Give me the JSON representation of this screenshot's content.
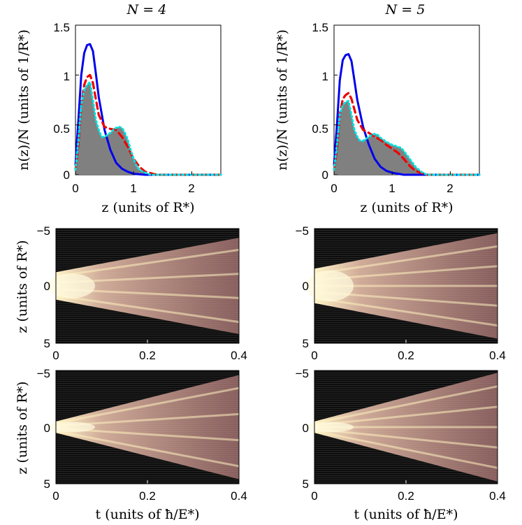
{
  "chart_data": [
    {
      "type": "line",
      "panel": "density",
      "title": "N = 4",
      "xlabel": "z (units of R*)",
      "ylabel": "n(z)/N (units of 1/R*)",
      "xlim": [
        0,
        2.5
      ],
      "ylim": [
        0,
        1.5
      ],
      "xticks": [
        "0",
        "1",
        "2"
      ],
      "yticks": [
        "0",
        "0.5",
        "1",
        "1.5"
      ],
      "series": [
        {
          "name": "blue solid",
          "color": "#0000ee",
          "x": [
            0,
            0.05,
            0.1,
            0.15,
            0.2,
            0.25,
            0.3,
            0.35,
            0.4,
            0.5,
            0.6,
            0.7,
            0.8,
            0.9,
            1.0,
            1.2,
            1.5,
            2.5
          ],
          "y": [
            0.1,
            0.55,
            1.0,
            1.22,
            1.3,
            1.31,
            1.24,
            1.02,
            0.78,
            0.45,
            0.25,
            0.12,
            0.06,
            0.03,
            0.01,
            0.0,
            0.0,
            0.0
          ]
        },
        {
          "name": "red dashed",
          "color": "#ee0000",
          "x": [
            0,
            0.05,
            0.1,
            0.15,
            0.2,
            0.25,
            0.3,
            0.4,
            0.5,
            0.6,
            0.7,
            0.8,
            0.9,
            1.0,
            1.1,
            1.2,
            1.4,
            2.5
          ],
          "y": [
            0.05,
            0.3,
            0.7,
            0.9,
            0.98,
            1.0,
            0.92,
            0.6,
            0.48,
            0.46,
            0.45,
            0.38,
            0.28,
            0.16,
            0.08,
            0.03,
            0.0,
            0.0
          ]
        },
        {
          "name": "shaded",
          "color": "#808080",
          "x": [
            0,
            0.05,
            0.1,
            0.15,
            0.2,
            0.25,
            0.3,
            0.35,
            0.4,
            0.45,
            0.5,
            0.55,
            0.6,
            0.65,
            0.7,
            0.75,
            0.8,
            0.85,
            0.9,
            0.95,
            1.0,
            1.05,
            1.1,
            1.2,
            1.3,
            2.5
          ],
          "y": [
            0.05,
            0.35,
            0.7,
            0.85,
            0.9,
            0.93,
            0.75,
            0.55,
            0.45,
            0.38,
            0.38,
            0.4,
            0.42,
            0.45,
            0.47,
            0.48,
            0.47,
            0.42,
            0.35,
            0.25,
            0.16,
            0.09,
            0.05,
            0.02,
            0.0,
            0.0
          ]
        },
        {
          "name": "cyan dotted",
          "color": "#00e0e0",
          "x": [
            0,
            0.05,
            0.1,
            0.15,
            0.2,
            0.25,
            0.3,
            0.35,
            0.4,
            0.45,
            0.5,
            0.55,
            0.6,
            0.65,
            0.7,
            0.75,
            0.8,
            0.85,
            0.9,
            0.95,
            1.0,
            1.05,
            1.1,
            1.2,
            1.3,
            2.5
          ],
          "y": [
            0.05,
            0.35,
            0.7,
            0.85,
            0.9,
            0.93,
            0.75,
            0.55,
            0.45,
            0.38,
            0.38,
            0.4,
            0.42,
            0.45,
            0.47,
            0.48,
            0.47,
            0.42,
            0.35,
            0.25,
            0.16,
            0.09,
            0.05,
            0.02,
            0.0,
            0.0
          ]
        }
      ]
    },
    {
      "type": "line",
      "panel": "density",
      "title": "N = 5",
      "xlabel": "z (units of R*)",
      "ylabel": "n(z)/N (units of 1/R*)",
      "xlim": [
        0,
        2.5
      ],
      "ylim": [
        0,
        1.5
      ],
      "xticks": [
        "0",
        "1",
        "2"
      ],
      "yticks": [
        "0",
        "0.5",
        "1",
        "1.5"
      ],
      "series": [
        {
          "name": "blue solid",
          "color": "#0000ee",
          "x": [
            0,
            0.05,
            0.1,
            0.15,
            0.2,
            0.25,
            0.3,
            0.35,
            0.4,
            0.5,
            0.6,
            0.7,
            0.8,
            0.9,
            1.0,
            1.2,
            1.5,
            2.5
          ],
          "y": [
            0.1,
            0.5,
            0.95,
            1.15,
            1.2,
            1.21,
            1.14,
            0.95,
            0.75,
            0.48,
            0.3,
            0.16,
            0.08,
            0.04,
            0.02,
            0.0,
            0.0,
            0.0
          ]
        },
        {
          "name": "red dashed",
          "color": "#ee0000",
          "x": [
            0,
            0.05,
            0.1,
            0.15,
            0.2,
            0.25,
            0.3,
            0.4,
            0.5,
            0.6,
            0.7,
            0.8,
            0.9,
            1.0,
            1.1,
            1.2,
            1.3,
            1.4,
            1.6,
            2.5
          ],
          "y": [
            0.05,
            0.25,
            0.6,
            0.76,
            0.8,
            0.82,
            0.76,
            0.55,
            0.45,
            0.42,
            0.38,
            0.35,
            0.3,
            0.26,
            0.22,
            0.16,
            0.09,
            0.04,
            0.0,
            0.0
          ]
        },
        {
          "name": "shaded",
          "color": "#808080",
          "x": [
            0,
            0.05,
            0.1,
            0.15,
            0.2,
            0.25,
            0.3,
            0.35,
            0.4,
            0.45,
            0.5,
            0.55,
            0.6,
            0.65,
            0.7,
            0.75,
            0.8,
            0.9,
            1.0,
            1.05,
            1.1,
            1.15,
            1.2,
            1.3,
            1.4,
            1.5,
            1.6,
            2.5
          ],
          "y": [
            0.05,
            0.3,
            0.6,
            0.7,
            0.73,
            0.74,
            0.6,
            0.45,
            0.38,
            0.34,
            0.34,
            0.36,
            0.38,
            0.4,
            0.41,
            0.4,
            0.37,
            0.33,
            0.3,
            0.29,
            0.28,
            0.27,
            0.24,
            0.16,
            0.08,
            0.03,
            0.0,
            0.0
          ]
        },
        {
          "name": "cyan dotted",
          "color": "#00e0e0",
          "x": [
            0,
            0.05,
            0.1,
            0.15,
            0.2,
            0.25,
            0.3,
            0.35,
            0.4,
            0.45,
            0.5,
            0.55,
            0.6,
            0.65,
            0.7,
            0.75,
            0.8,
            0.9,
            1.0,
            1.05,
            1.1,
            1.15,
            1.2,
            1.3,
            1.4,
            1.5,
            1.6,
            2.5
          ],
          "y": [
            0.05,
            0.3,
            0.6,
            0.7,
            0.73,
            0.74,
            0.6,
            0.45,
            0.38,
            0.34,
            0.34,
            0.36,
            0.38,
            0.4,
            0.41,
            0.4,
            0.37,
            0.33,
            0.3,
            0.29,
            0.28,
            0.27,
            0.24,
            0.16,
            0.08,
            0.03,
            0.0,
            0.0
          ]
        }
      ]
    },
    {
      "type": "heatmap",
      "panel": "evolution",
      "ylabel": "z (units of R*)",
      "xlim": [
        0,
        0.4
      ],
      "ylim": [
        -5,
        5
      ],
      "xticks": [
        "0",
        "0.2",
        "0.4"
      ],
      "yticks": [
        "−5",
        "0",
        "5"
      ],
      "N": 4,
      "width_start": 1.2,
      "width_end": 4.2,
      "fringes": 4
    },
    {
      "type": "heatmap",
      "panel": "evolution",
      "ylabel": "z (units of R*)",
      "xlim": [
        0,
        0.4
      ],
      "ylim": [
        -5,
        5
      ],
      "xticks": [
        "0",
        "0.2",
        "0.4"
      ],
      "yticks": [
        "−5",
        "0",
        "5"
      ],
      "N": 5,
      "width_start": 1.5,
      "width_end": 4.6,
      "fringes": 5
    },
    {
      "type": "heatmap",
      "panel": "evolution",
      "ylabel": "z (units of R*)",
      "xlabel": "t (units of ħ/E*)",
      "xlim": [
        0,
        0.4
      ],
      "ylim": [
        -5,
        5
      ],
      "xticks": [
        "0",
        "0.2",
        "0.4"
      ],
      "yticks": [
        "−5",
        "0",
        "5"
      ],
      "N": 4,
      "width_start": 0.5,
      "width_end": 4.6,
      "fringes": 4
    },
    {
      "type": "heatmap",
      "panel": "evolution",
      "ylabel": "z (units of R*)",
      "xlabel": "t (units of ħ/E*)",
      "xlim": [
        0,
        0.4
      ],
      "ylim": [
        -5,
        5
      ],
      "xticks": [
        "0",
        "0.2",
        "0.4"
      ],
      "yticks": [
        "−5",
        "0",
        "5"
      ],
      "N": 5,
      "width_start": 0.5,
      "width_end": 4.8,
      "fringes": 5
    }
  ]
}
